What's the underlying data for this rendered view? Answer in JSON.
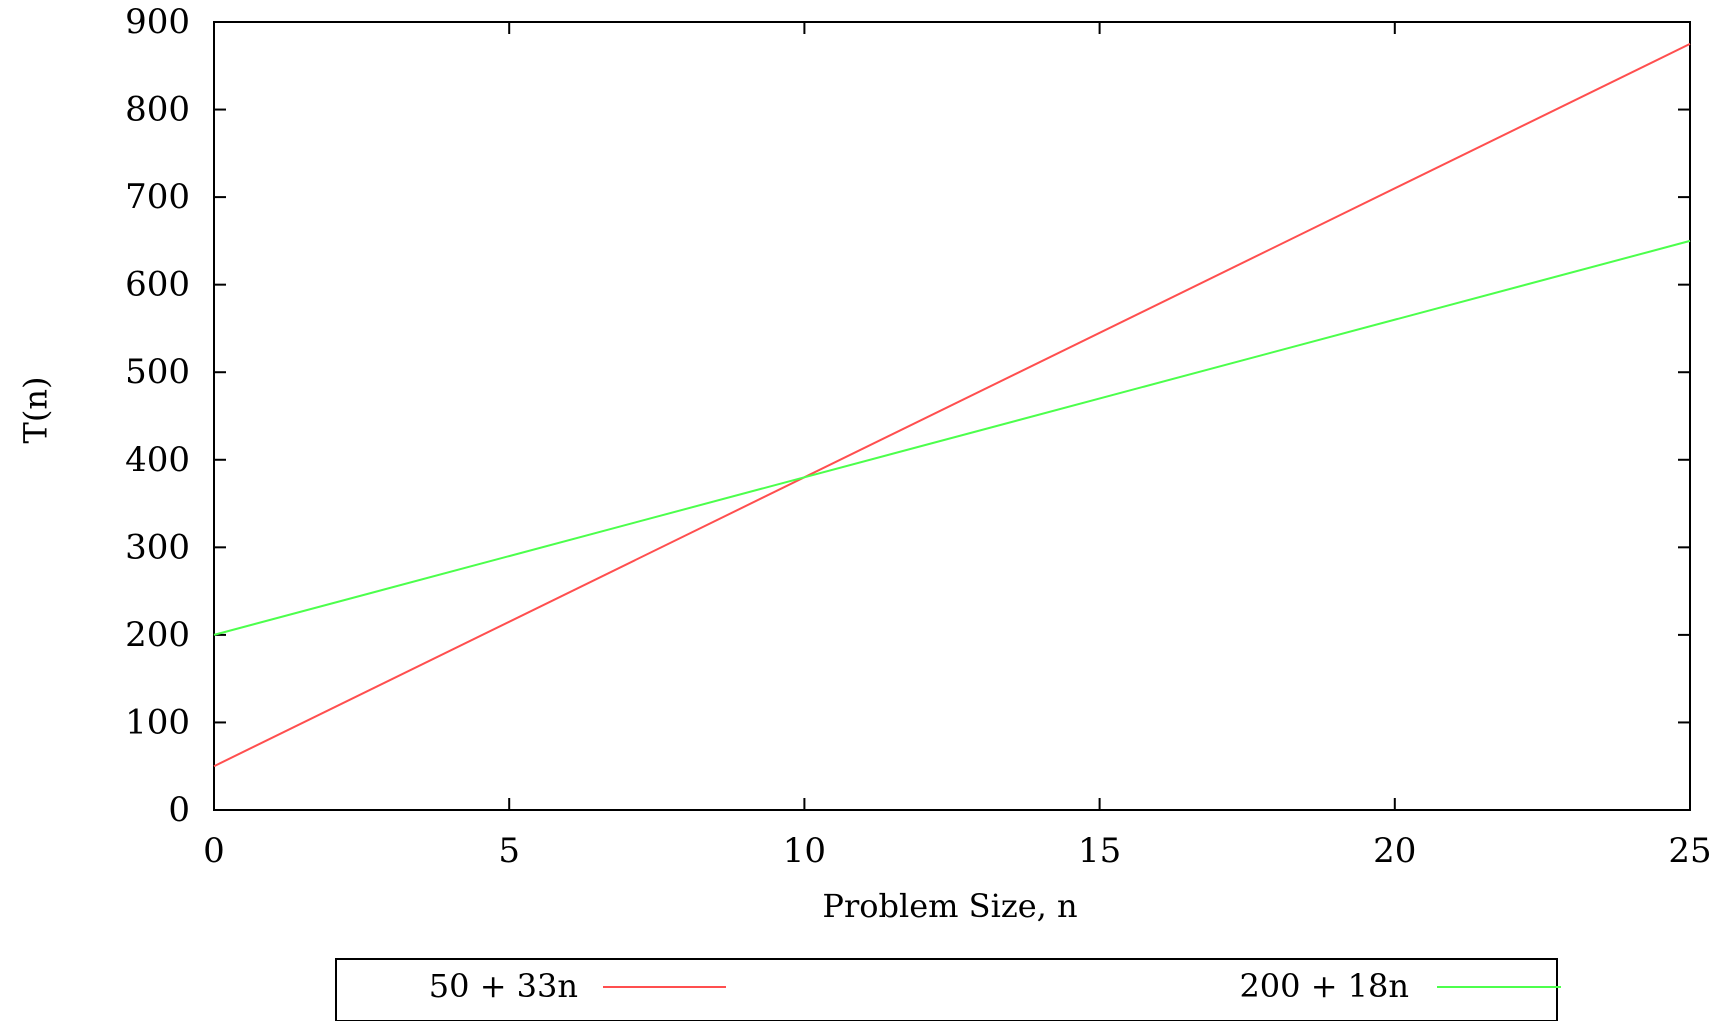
{
  "chart_data": {
    "type": "line",
    "title": "",
    "xlabel": "Problem Size, n",
    "ylabel": "T(n)",
    "xlim": [
      0,
      25
    ],
    "ylim": [
      0,
      900
    ],
    "x_ticks": [
      0,
      5,
      10,
      15,
      20,
      25
    ],
    "y_ticks": [
      0,
      100,
      200,
      300,
      400,
      500,
      600,
      700,
      800,
      900
    ],
    "grid": false,
    "legend_position": "bottom",
    "series": [
      {
        "name": "50 + 33n",
        "color": "#ff4f4f",
        "x": [
          0,
          25
        ],
        "y": [
          50,
          875
        ]
      },
      {
        "name": "200 + 18n",
        "color": "#4cff4c",
        "x": [
          0,
          25
        ],
        "y": [
          200,
          650
        ]
      }
    ]
  }
}
